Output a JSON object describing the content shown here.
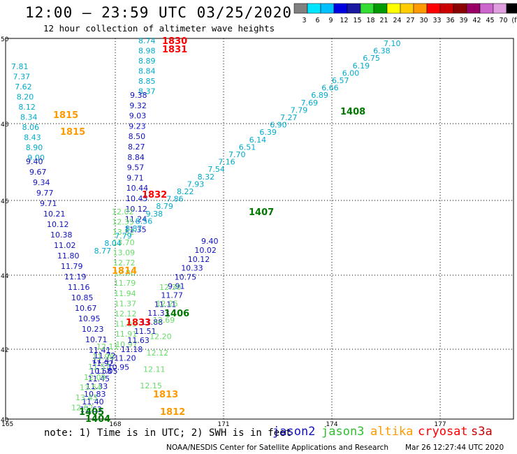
{
  "header": {
    "title": "12:00 – 23:59 UTC 03/25/2020",
    "subtitle": "12 hour collection of altimeter wave heights"
  },
  "legend": {
    "labels": [
      "3",
      "6",
      "9",
      "12",
      "15",
      "18",
      "21",
      "24",
      "27",
      "30",
      "33",
      "36",
      "39",
      "42",
      "45",
      "70",
      "(ft)"
    ],
    "colors": [
      "#808080",
      "#00e5ff",
      "#00bfff",
      "#0000e0",
      "#1a1aa0",
      "#33dd33",
      "#009900",
      "#ffff00",
      "#ffcc00",
      "#ff9900",
      "#ff0000",
      "#cc0000",
      "#8b0000",
      "#990066",
      "#cc66cc",
      "#e0a0e0",
      "#000000"
    ]
  },
  "map": {
    "lon_ticks": [
      "165",
      "168",
      "171",
      "174",
      "177"
    ],
    "lat_ticks": [
      "50",
      "48",
      "46",
      "44",
      "42",
      "40"
    ],
    "colors": {
      "jason2": "#1010c0",
      "jason3": "#40d040",
      "altika": "#ff9900",
      "cryosat": "#ff0000",
      "cyan": "#00aacc",
      "lightgreen": "#66dd66",
      "darkgreen": "#007700"
    }
  },
  "track_a": {
    "color": "#00aacc",
    "values": [
      "7.81",
      "7.37",
      "7.62",
      "8.20",
      "8.12",
      "8.34",
      "8.06",
      "8.43",
      "8.90",
      "9.00"
    ]
  },
  "track_b": {
    "color": "#1010c0",
    "values": [
      "9.40",
      "9.67",
      "9.34",
      "9.77",
      "9.71",
      "10.21",
      "10.12",
      "10.38",
      "11.02",
      "11.80",
      "11.79",
      "11.19",
      "11.16",
      "10.85",
      "10.67",
      "10.95",
      "10.23",
      "10.71",
      "11.41",
      "11.47",
      "11.05"
    ]
  },
  "track_c": {
    "color": "#00aacc",
    "values": [
      "8.74",
      "8.98",
      "8.89",
      "8.84",
      "8.85",
      "8.37"
    ]
  },
  "track_d": {
    "color": "#1010c0",
    "values": [
      "9.38",
      "9.32",
      "9.03",
      "9.23",
      "8.50",
      "8.27",
      "8.84",
      "9.57",
      "9.71",
      "10.44",
      "10.45",
      "10.12",
      "11.24",
      "11.35"
    ]
  },
  "track_e": {
    "color": "#66dd66",
    "values": [
      "12.02",
      "12.35",
      "13.52",
      "13.70",
      "13.09",
      "12.72",
      "12.86",
      "11.79",
      "11.94",
      "11.37",
      "12.12",
      "11.05",
      "11.91",
      "10.97"
    ]
  },
  "track_f": {
    "color": "#00aacc",
    "values": [
      "7.10",
      "6.38",
      "6.75",
      "6.19",
      "6.00",
      "6.57",
      "6.66",
      "6.89",
      "7.69",
      "7.79",
      "7.27",
      "6.90",
      "6.39",
      "6.14",
      "6.51",
      "7.70",
      "7.16",
      "7.54",
      "8.32",
      "7.93",
      "8.22",
      "7.86",
      "8.79",
      "9.38",
      "8.56",
      "8.87",
      "7.79",
      "8.04",
      "8.77"
    ]
  },
  "track_g": {
    "color": "#1010c0",
    "values": [
      "9.40",
      "10.02",
      "10.12",
      "10.33",
      "10.75",
      "9.91",
      "11.77",
      "11.11",
      "11.33",
      "11.88",
      "11.51",
      "11.63",
      "11.18",
      "11.20",
      "10.95"
    ]
  },
  "track_h": {
    "color": "#66dd66",
    "values": [
      "12.30",
      "12.25",
      "12.69",
      "12.20",
      "12.12",
      "12.11",
      "12.15"
    ]
  },
  "track_i": {
    "color": "#1010c0",
    "values": [
      "11.72",
      "11.92",
      "10.58",
      "11.45",
      "11.33",
      "10.83",
      "11.40",
      "11.63"
    ]
  },
  "track_j": {
    "color": "#66dd66",
    "values": [
      "12.11",
      "11.98",
      "11.57",
      "12.09",
      "13.54",
      "13.43",
      "12.62"
    ]
  },
  "passes": [
    {
      "label": "1830",
      "type": "cryosat"
    },
    {
      "label": "1831",
      "type": "cryosat"
    },
    {
      "label": "1832",
      "type": "cryosat"
    },
    {
      "label": "1833",
      "type": "cryosat"
    },
    {
      "label": "1815",
      "type": "altika"
    },
    {
      "label": "1815",
      "type": "altika"
    },
    {
      "label": "1814",
      "type": "altika"
    },
    {
      "label": "1813",
      "type": "altika"
    },
    {
      "label": "1812",
      "type": "altika"
    },
    {
      "label": "1408",
      "type": "jason3"
    },
    {
      "label": "1407",
      "type": "jason3"
    },
    {
      "label": "1406",
      "type": "jason3"
    },
    {
      "label": "1405",
      "type": "jason3"
    },
    {
      "label": "1404",
      "type": "jason3"
    }
  ],
  "footer": {
    "note": "note: 1) Time is in UTC; 2) SWH is in feet",
    "sat_jason2": "jason2",
    "sat_jason3": "jason3",
    "sat_altika": "altika",
    "sat_cryosat": "cryosat",
    "sat_s3a": "s3a",
    "credit": "NOAA/NESDIS Center for Satellite Applications and Research",
    "timestamp": "Mar 26 12:27:44 UTC 2020"
  }
}
